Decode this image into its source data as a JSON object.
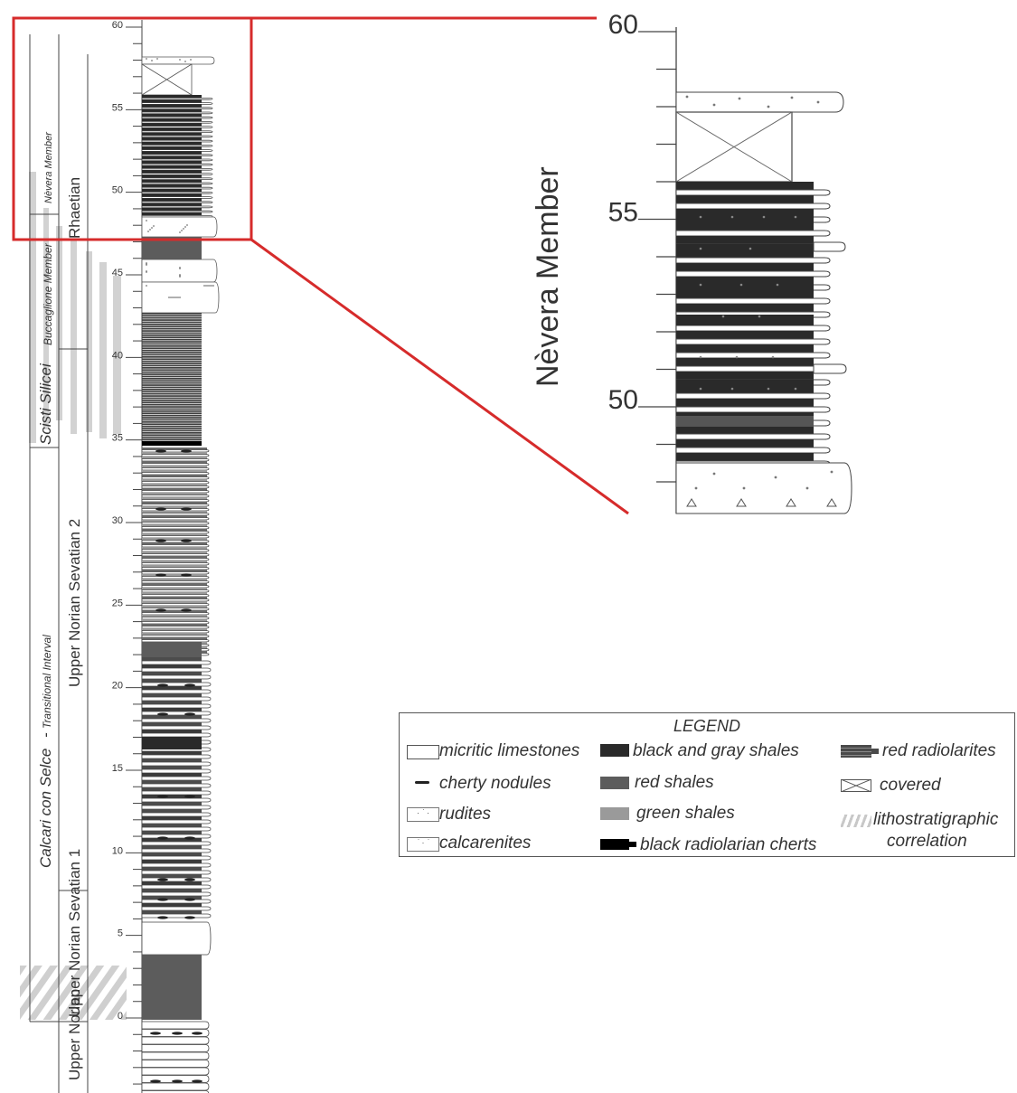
{
  "column": {
    "tick_labels": [
      "60",
      "55",
      "50",
      "45",
      "40",
      "35",
      "30",
      "25",
      "20",
      "15",
      "10",
      "5",
      "0"
    ],
    "formations": {
      "calcari": "Calcari con Selce",
      "transitional": "Transitional Interval",
      "dash": "-",
      "scisti": "Scisti Silicei",
      "buccaglione": "Buccaglione Member",
      "nevera": "Nèvera Member"
    },
    "stages": {
      "rhaetian": "Rhaetian",
      "sevatian2": "Upper Norian Sevatian 2",
      "sevatian1": "Upper Norian Sevatian 1",
      "sevatian_bottom": "Upper Norian"
    }
  },
  "zoom": {
    "title": "Nèvera Member",
    "tick_labels": [
      "60",
      "55",
      "50"
    ]
  },
  "legend": {
    "title": "LEGEND",
    "items": [
      {
        "label": "micritic limestones",
        "pattern": "white"
      },
      {
        "label": "cherty nodules",
        "pattern": "nodule"
      },
      {
        "label": "rudites",
        "pattern": "rudite"
      },
      {
        "label": "calcarenites",
        "pattern": "calcarenite"
      },
      {
        "label": "black and gray shales",
        "pattern": "black"
      },
      {
        "label": "red shales",
        "pattern": "red"
      },
      {
        "label": "green shales",
        "pattern": "green"
      },
      {
        "label": "black radiolarian cherts",
        "pattern": "chert"
      },
      {
        "label": "red radiolarites",
        "pattern": "radiolarite"
      },
      {
        "label": "covered",
        "pattern": "covered"
      },
      {
        "label": "lithostratigraphic",
        "pattern": "hatch"
      },
      {
        "label": "correlation",
        "pattern": "none"
      }
    ]
  },
  "colors": {
    "highlight": "#d62b2b",
    "black_shale": "#2a2a2a",
    "red_shale": "#5c5c5c",
    "green_shale": "#9a9a9a",
    "correlation": "#cccccc"
  }
}
